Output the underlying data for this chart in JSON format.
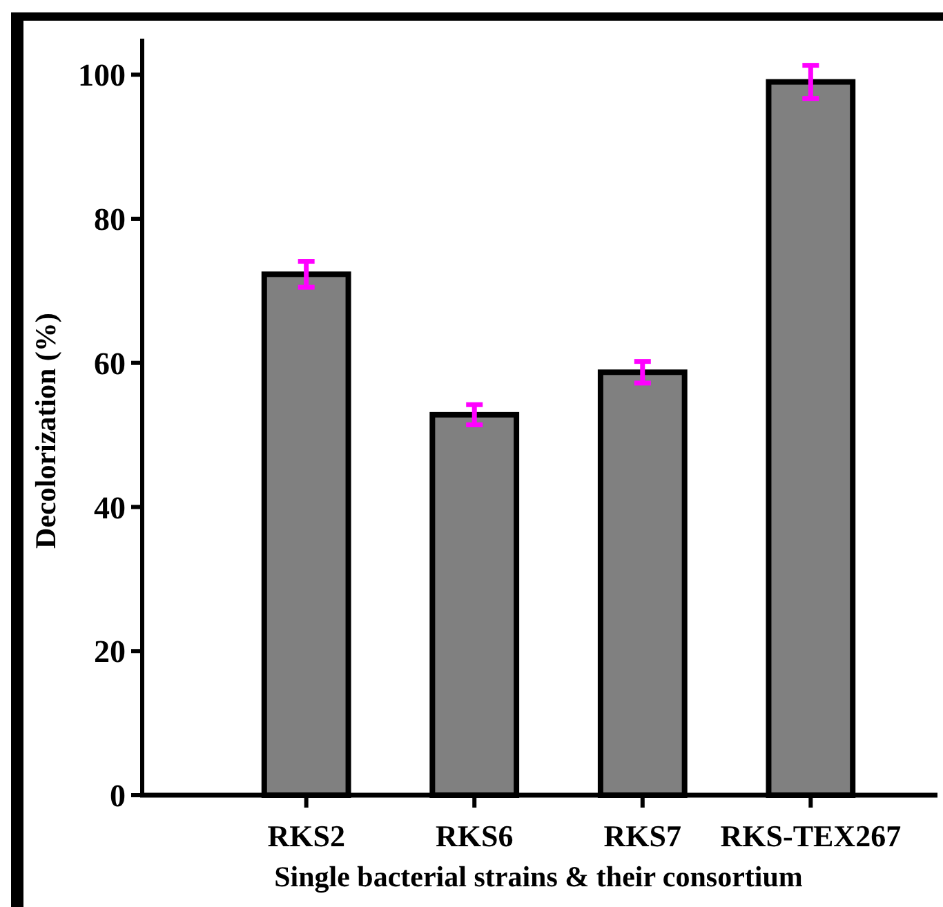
{
  "chart_data": {
    "type": "bar",
    "xlabel": "Single bacterial strains & their consortium",
    "ylabel": "Decolorization (%)",
    "categories": [
      "RKS2",
      "RKS6",
      "RKS7",
      "RKS-TEX267"
    ],
    "series": [
      {
        "color": "#808080",
        "values": [
          72.3,
          52.8,
          58.7,
          99.0
        ],
        "errors": [
          1.8,
          1.4,
          1.5,
          2.3
        ]
      }
    ],
    "ylim": [
      0,
      105
    ],
    "yticks": [
      0,
      20,
      40,
      60,
      80,
      100
    ],
    "grid": false
  }
}
